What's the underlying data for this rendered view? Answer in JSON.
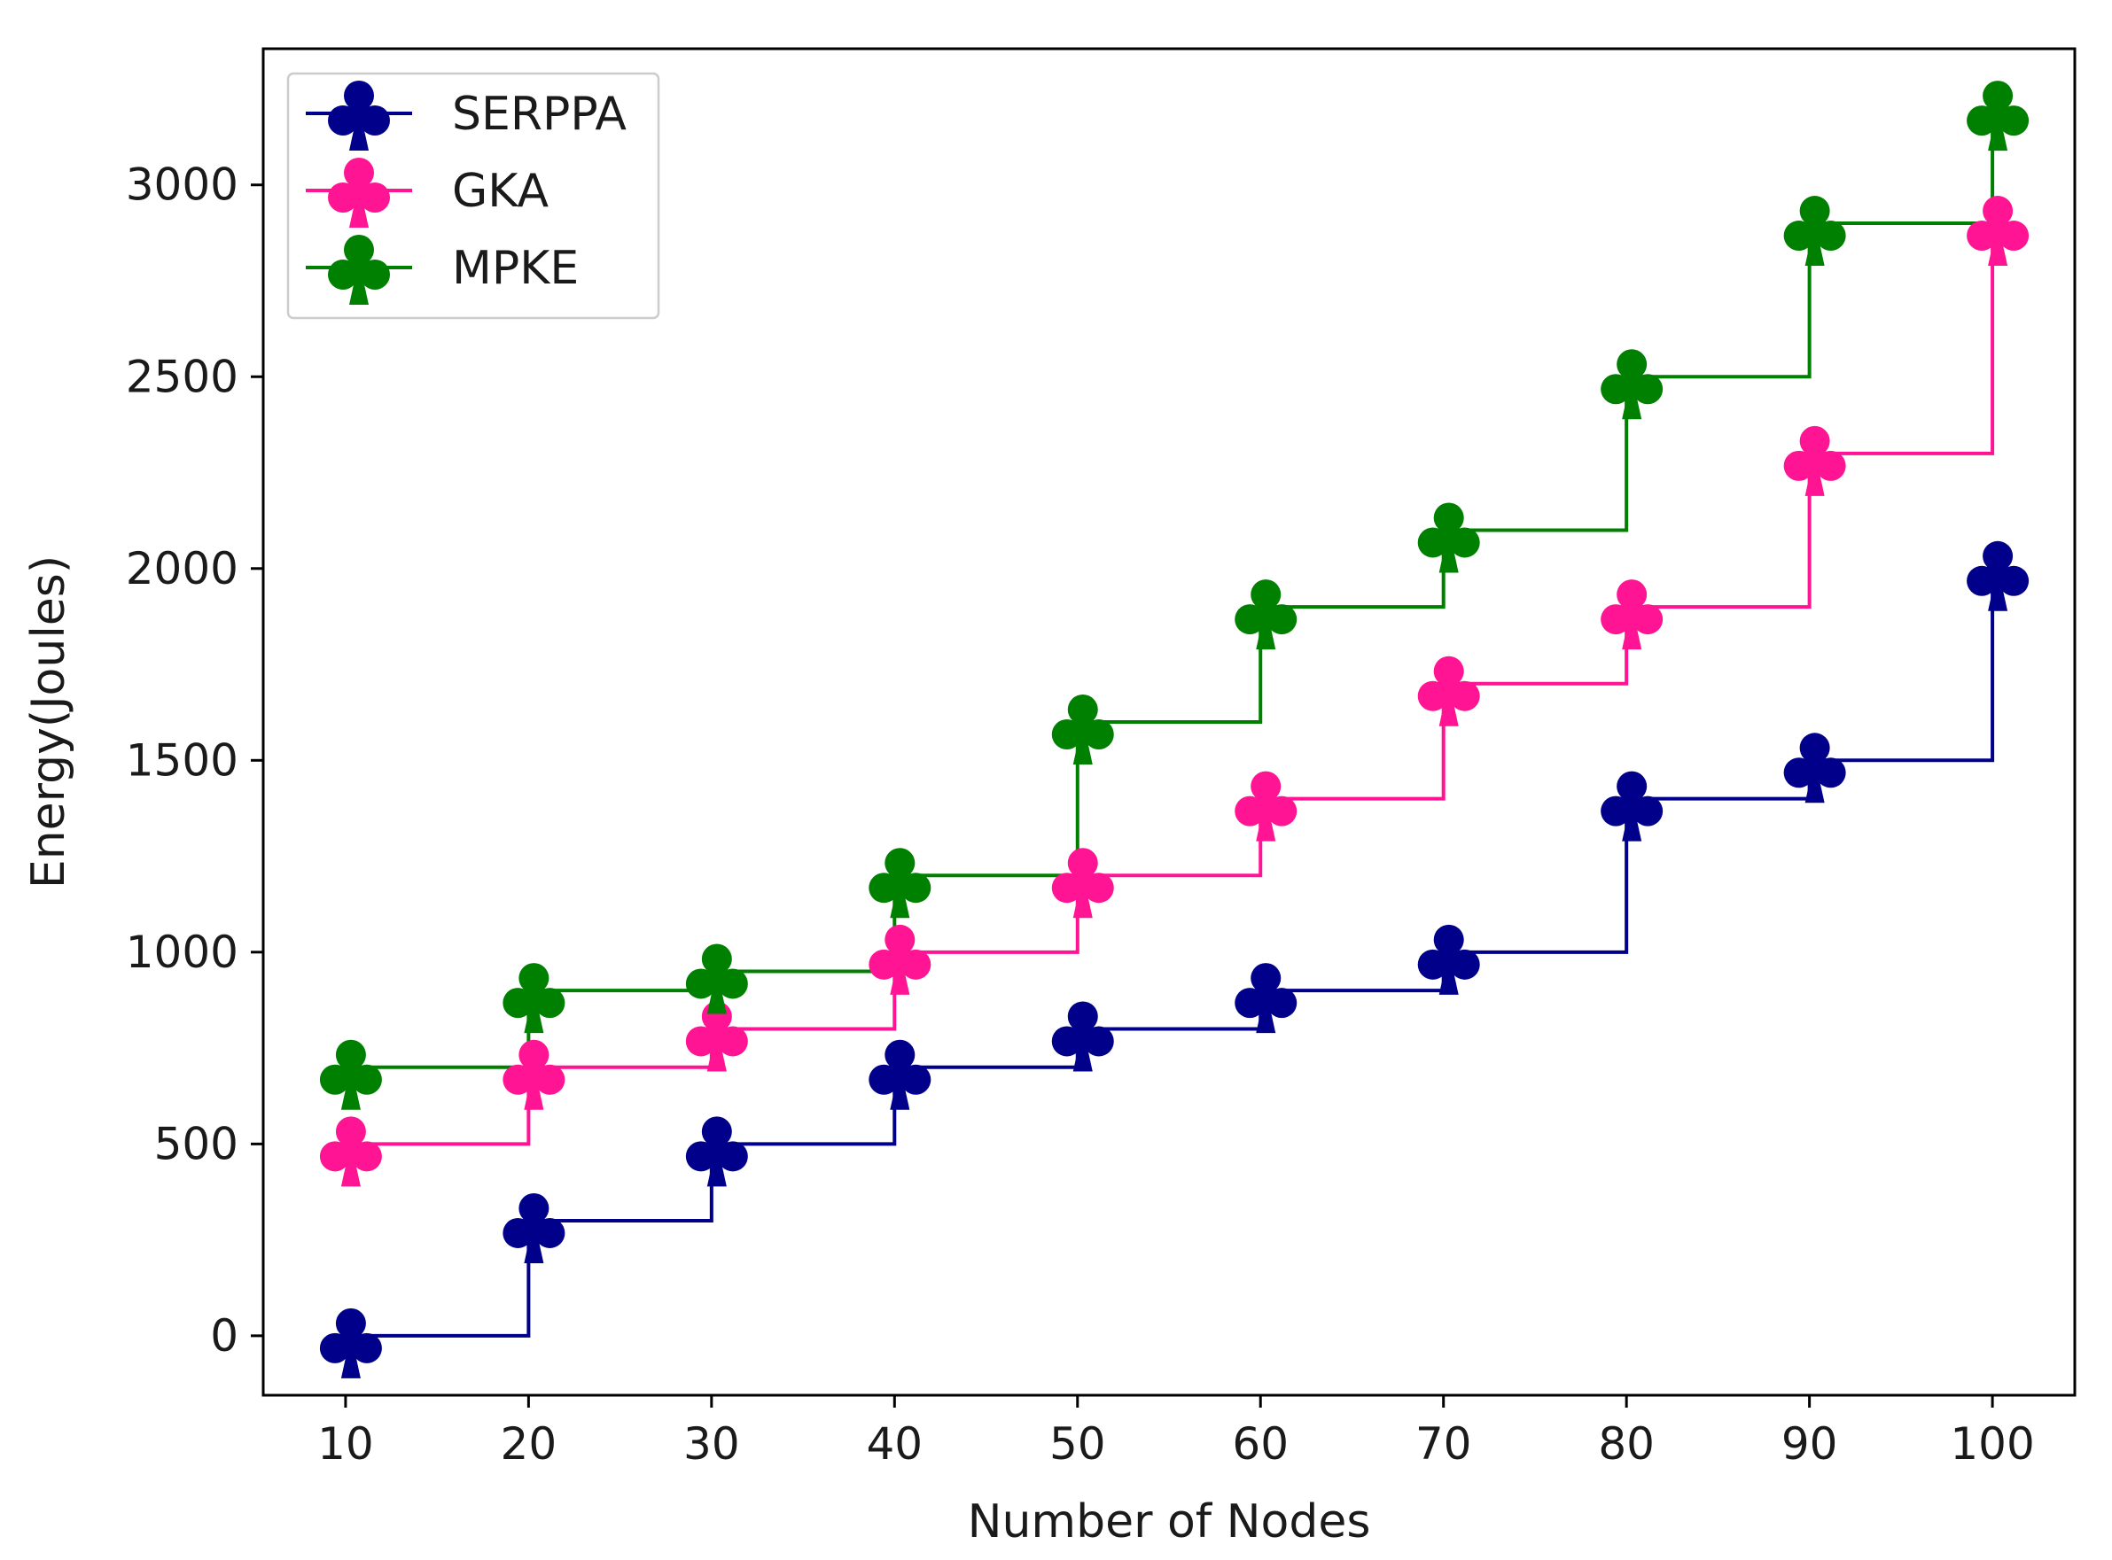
{
  "chart_data": {
    "type": "line",
    "drawstyle": "steps-post",
    "marker": "club-suit",
    "title": "",
    "xlabel": "Number of Nodes",
    "ylabel": "Energy(Joules)",
    "x": [
      10,
      20,
      30,
      40,
      50,
      60,
      70,
      80,
      90,
      100
    ],
    "xticks": [
      10,
      20,
      30,
      40,
      50,
      60,
      70,
      80,
      90,
      100
    ],
    "yticks": [
      0,
      500,
      1000,
      1500,
      2000,
      2500,
      3000
    ],
    "xlim": [
      5.5,
      104.5
    ],
    "ylim": [
      -155,
      3355
    ],
    "grid": false,
    "legend_position": "top-left",
    "series": [
      {
        "name": "SERPPA",
        "color": "#00008b",
        "values": [
          0,
          300,
          500,
          700,
          800,
          900,
          1000,
          1400,
          1500,
          2000
        ]
      },
      {
        "name": "GKA",
        "color": "#ff1493",
        "values": [
          500,
          700,
          800,
          1000,
          1200,
          1400,
          1700,
          1900,
          2300,
          2900
        ]
      },
      {
        "name": "MPKE",
        "color": "#008000",
        "values": [
          700,
          900,
          950,
          1200,
          1600,
          1900,
          2100,
          2500,
          2900,
          3200
        ]
      }
    ]
  }
}
